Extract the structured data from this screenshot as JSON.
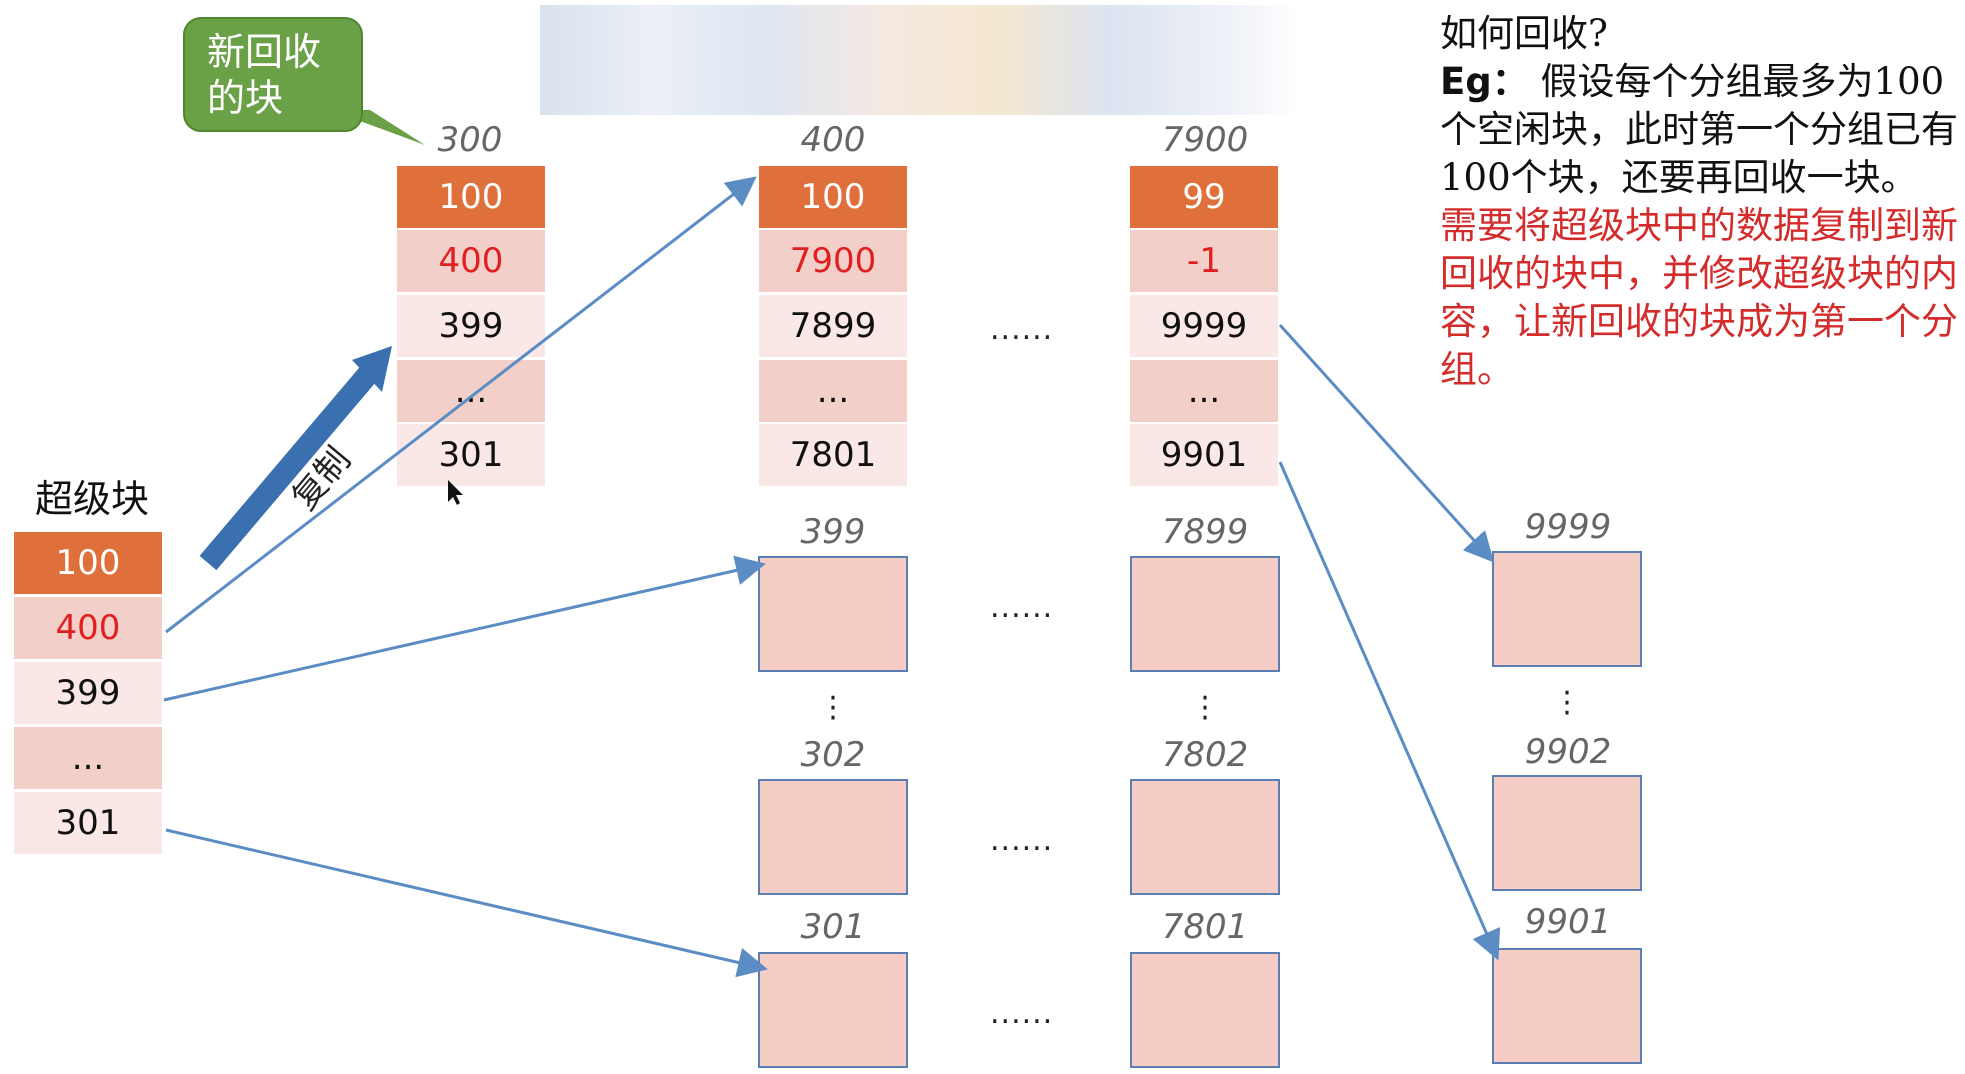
{
  "callout": {
    "line1": "新回收",
    "line2": "的块"
  },
  "copy_label": "复制",
  "superblock": {
    "title": "超级块",
    "cells": [
      "100",
      "400",
      "399",
      "...",
      "301"
    ]
  },
  "group_300": {
    "label": "300",
    "cells": [
      "100",
      "400",
      "399",
      "...",
      "301"
    ]
  },
  "group_400": {
    "label": "400",
    "cells": [
      "100",
      "7900",
      "7899",
      "...",
      "7801"
    ]
  },
  "group_7900": {
    "label": "7900",
    "cells": [
      "99",
      "-1",
      "9999",
      "...",
      "9901"
    ]
  },
  "ellipsis": "......",
  "vellipsis": ":",
  "blocks_col1": [
    "399",
    "302",
    "301"
  ],
  "blocks_col2": [
    "7899",
    "7802",
    "7801"
  ],
  "blocks_col3": [
    "9999",
    "9902",
    "9901"
  ],
  "notes": {
    "question": "如何回收?",
    "eg_label": "Eg：",
    "eg_text": "假设每个分组最多为100个空闲块，此时第一个分组已有100个块，还要再回收一块。",
    "answer": "需要将超级块中的数据复制到新回收的块中，并修改超级块的内容，让新回收的块成为第一个分组。"
  },
  "colors": {
    "orange": "#e0703b",
    "pink": "#f2cfc9",
    "light": "#fae8e6",
    "arrow": "#5b8cc4",
    "callout": "#6aa147",
    "red": "#e02020"
  }
}
